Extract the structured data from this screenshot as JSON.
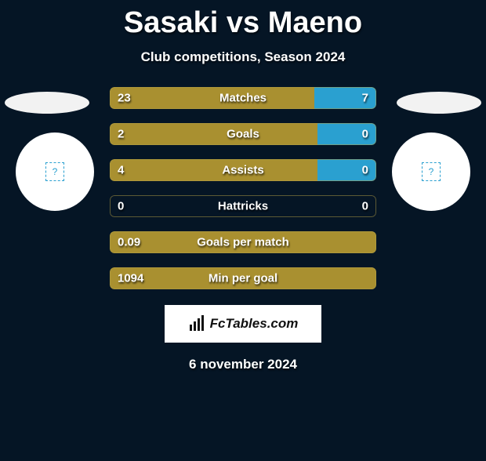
{
  "title": "Sasaki vs Maeno",
  "subtitle": "Club competitions, Season 2024",
  "date": "6 november 2024",
  "logo_text": "FcTables.com",
  "colors": {
    "player1": "#a99030",
    "player2": "#2aa0d0",
    "bg": "#051525",
    "text": "#ffffff"
  },
  "player_badge": "?",
  "stats": [
    {
      "label": "Matches",
      "left_val": "23",
      "right_val": "7",
      "left_pct": 76.7,
      "right_pct": 23.3
    },
    {
      "label": "Goals",
      "left_val": "2",
      "right_val": "0",
      "left_pct": 78.0,
      "right_pct": 22.0
    },
    {
      "label": "Assists",
      "left_val": "4",
      "right_val": "0",
      "left_pct": 78.0,
      "right_pct": 22.0
    },
    {
      "label": "Hattricks",
      "left_val": "0",
      "right_val": "0",
      "left_pct": 0.0,
      "right_pct": 0.0
    },
    {
      "label": "Goals per match",
      "left_val": "0.09",
      "right_val": "",
      "left_pct": 100.0,
      "right_pct": 0.0
    },
    {
      "label": "Min per goal",
      "left_val": "1094",
      "right_val": "",
      "left_pct": 100.0,
      "right_pct": 0.0
    }
  ]
}
